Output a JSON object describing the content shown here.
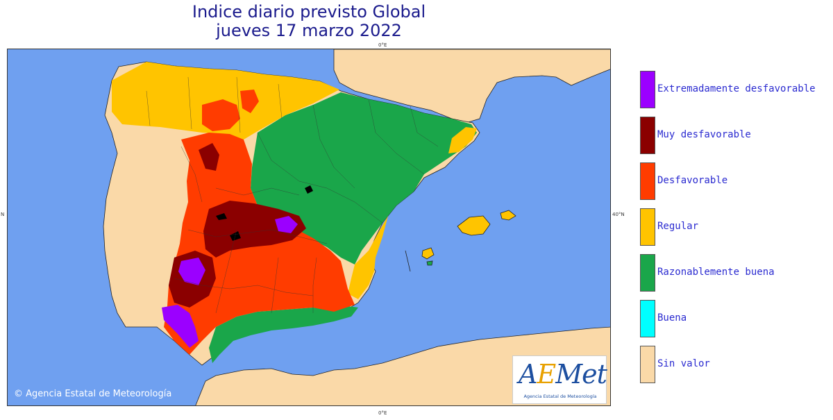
{
  "title": {
    "line1": "Indice diario previsto Global",
    "line2": "jueves 17 marzo 2022"
  },
  "axis_ticks": {
    "top": "0°E",
    "bottom": "0°E",
    "left": "N",
    "right": "40°N"
  },
  "copyright": "© Agencia Estatal de Meteorología",
  "logo": {
    "name": "AEMet",
    "subtitle": "Agencia Estatal de Meteorología"
  },
  "legend": [
    {
      "label": "Extremadamente desfavorable",
      "color": "#9b00ff"
    },
    {
      "label": "Muy desfavorable",
      "color": "#8b0000"
    },
    {
      "label": "Desfavorable",
      "color": "#ff3c00"
    },
    {
      "label": "Regular",
      "color": "#ffc400"
    },
    {
      "label": "Razonablemente buena",
      "color": "#1aa64a"
    },
    {
      "label": "Buena",
      "color": "#00ffff"
    },
    {
      "label": "Sin valor",
      "color": "#fad9a8"
    }
  ],
  "colors": {
    "sea": "#6fa0f0",
    "land": "#fad9a8"
  }
}
